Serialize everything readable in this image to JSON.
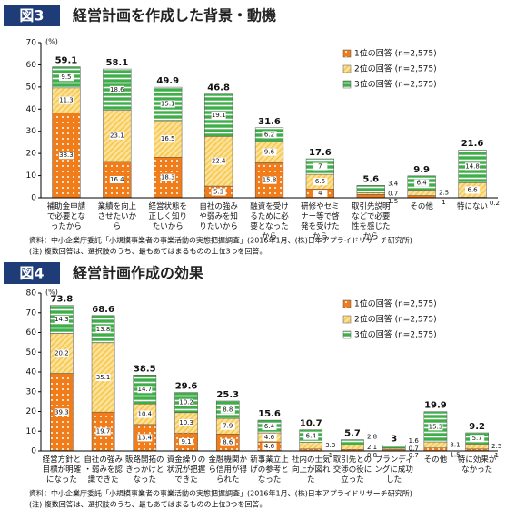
{
  "chart_data": [
    {
      "type": "bar",
      "stacked": true,
      "figure_label": "図3",
      "title": "経営計画を作成した背景・動機",
      "ylabel": "(%)",
      "categories": [
        "補助金申請で必要となったから",
        "業績を向上させたいから",
        "経営状態を正しく知りたいから",
        "自社の強みや弱みを知りたいから",
        "融資を受けるために必要となったから",
        "研修やセミナー等で啓発を受けたから",
        "取引先説明などで必要性を感じたから",
        "その他",
        "特にない"
      ],
      "series": [
        {
          "name": "1位の回答 (n=2,575)",
          "color": "#f07d19",
          "hatch": "dots",
          "values": [
            38.3,
            16.4,
            18.3,
            5.3,
            15.8,
            4.0,
            1.5,
            1.0,
            0.2
          ]
        },
        {
          "name": "2位の回答 (n=2,575)",
          "color": "#f7c84a",
          "hatch": "diagonal",
          "values": [
            11.3,
            23.1,
            16.5,
            22.4,
            9.6,
            6.6,
            0.7,
            2.5,
            6.6
          ]
        },
        {
          "name": "3位の回答 (n=2,575)",
          "color": "#3fae49",
          "hatch": "lines",
          "values": [
            9.5,
            18.6,
            15.1,
            19.1,
            6.2,
            7.0,
            3.4,
            6.4,
            14.8
          ]
        }
      ],
      "totals": [
        59.1,
        58.1,
        49.9,
        46.8,
        31.6,
        17.6,
        5.6,
        9.9,
        21.6
      ],
      "ylim": [
        0,
        70
      ],
      "yticks": [
        0,
        10,
        20,
        30,
        40,
        50,
        60,
        70
      ],
      "legend": "upper right",
      "source": "資料：中小企業庁委託「小規模事業者の事業活動の実態把握調査」(2016年1月、(株)日本アプライドリサーチ研究所)",
      "note": "(注) 複数回答は、選択肢のうち、最もあてはまるものの上位3つを回答。"
    },
    {
      "type": "bar",
      "stacked": true,
      "figure_label": "図4",
      "title": "経営計画作成の効果",
      "ylabel": "(%)",
      "categories": [
        "経営方針と目標が明確になった",
        "自社の強み・弱みを認識できた",
        "販路開拓のきっかけとなった",
        "資金繰りの状況が把握できた",
        "金融機関から信用が得られた",
        "新事業立上げの参考となった",
        "社内の士気向上が図れた",
        "取引先との交渉の役に立った",
        "ブランディングに成功した",
        "その他",
        "特に効果がなかった"
      ],
      "series": [
        {
          "name": "1位の回答 (n=2,575)",
          "color": "#f07d19",
          "hatch": "dots",
          "values": [
            39.3,
            19.7,
            13.4,
            9.1,
            8.6,
            4.6,
            1.0,
            0.8,
            0.7,
            1.5,
            1.0
          ]
        },
        {
          "name": "2位の回答 (n=2,575)",
          "color": "#f7c84a",
          "hatch": "diagonal",
          "values": [
            20.2,
            35.1,
            10.4,
            10.3,
            7.9,
            4.6,
            3.3,
            2.1,
            0.7,
            3.1,
            2.5
          ]
        },
        {
          "name": "3位の回答 (n=2,575)",
          "color": "#3fae49",
          "hatch": "lines",
          "values": [
            14.3,
            13.8,
            14.7,
            10.2,
            8.8,
            6.4,
            6.4,
            2.8,
            1.6,
            15.3,
            5.7
          ]
        }
      ],
      "totals": [
        73.8,
        68.6,
        38.5,
        29.6,
        25.3,
        15.6,
        10.7,
        5.7,
        3.0,
        19.9,
        9.2
      ],
      "ylim": [
        0,
        80
      ],
      "yticks": [
        0,
        10,
        20,
        30,
        40,
        50,
        60,
        70,
        80
      ],
      "legend": "upper right",
      "source": "資料：中小企業庁委託「小規模事業者の事業活動の実態把握調査」(2016年1月、(株)日本アプライドリサーチ研究所)",
      "note": "(注) 複数回答は、選択肢のうち、最もあてはまるものの上位3つを回答。"
    }
  ]
}
